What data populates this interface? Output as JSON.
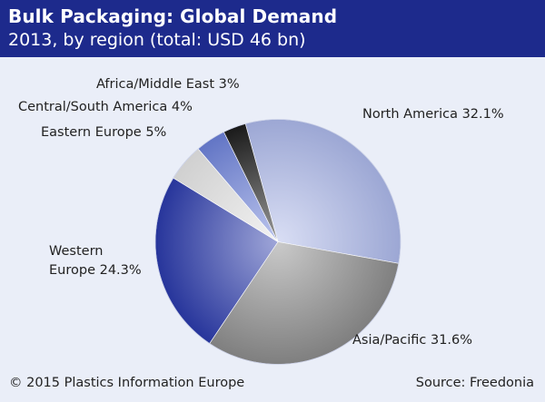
{
  "header": {
    "title": "Bulk Packaging: Global Demand",
    "subtitle": "2013, by region (total: USD 46 bn)"
  },
  "footer": {
    "copyright": "© 2015 Plastics Information Europe",
    "source": "Source: Freedonia"
  },
  "colors": {
    "header_bg": "#1d2a8c",
    "background": "#eaeef8"
  },
  "chart_data": {
    "type": "pie",
    "title": "Bulk Packaging: Global Demand",
    "subtitle": "2013, by region (total: USD 46 bn)",
    "slices": [
      {
        "name": "North America",
        "value": 32.1,
        "label": "North America 32.1%",
        "color": "#aab6e6"
      },
      {
        "name": "Asia/Pacific",
        "value": 31.6,
        "label": "Asia/Pacific 31.6%",
        "color": "#8a8a8a"
      },
      {
        "name": "Western Europe",
        "value": 24.3,
        "label_lines": [
          "Western",
          "Europe 24.3%"
        ],
        "color": "#2a3aa8"
      },
      {
        "name": "Eastern Europe",
        "value": 5,
        "label": "Eastern Europe 5%",
        "color": "#e2e2e2"
      },
      {
        "name": "Central/South America",
        "value": 4,
        "label": "Central/South America 4%",
        "color": "#6b7fd6"
      },
      {
        "name": "Africa/Middle East",
        "value": 3,
        "label": "Africa/Middle East 3%",
        "color": "#1c1c1c"
      }
    ]
  }
}
